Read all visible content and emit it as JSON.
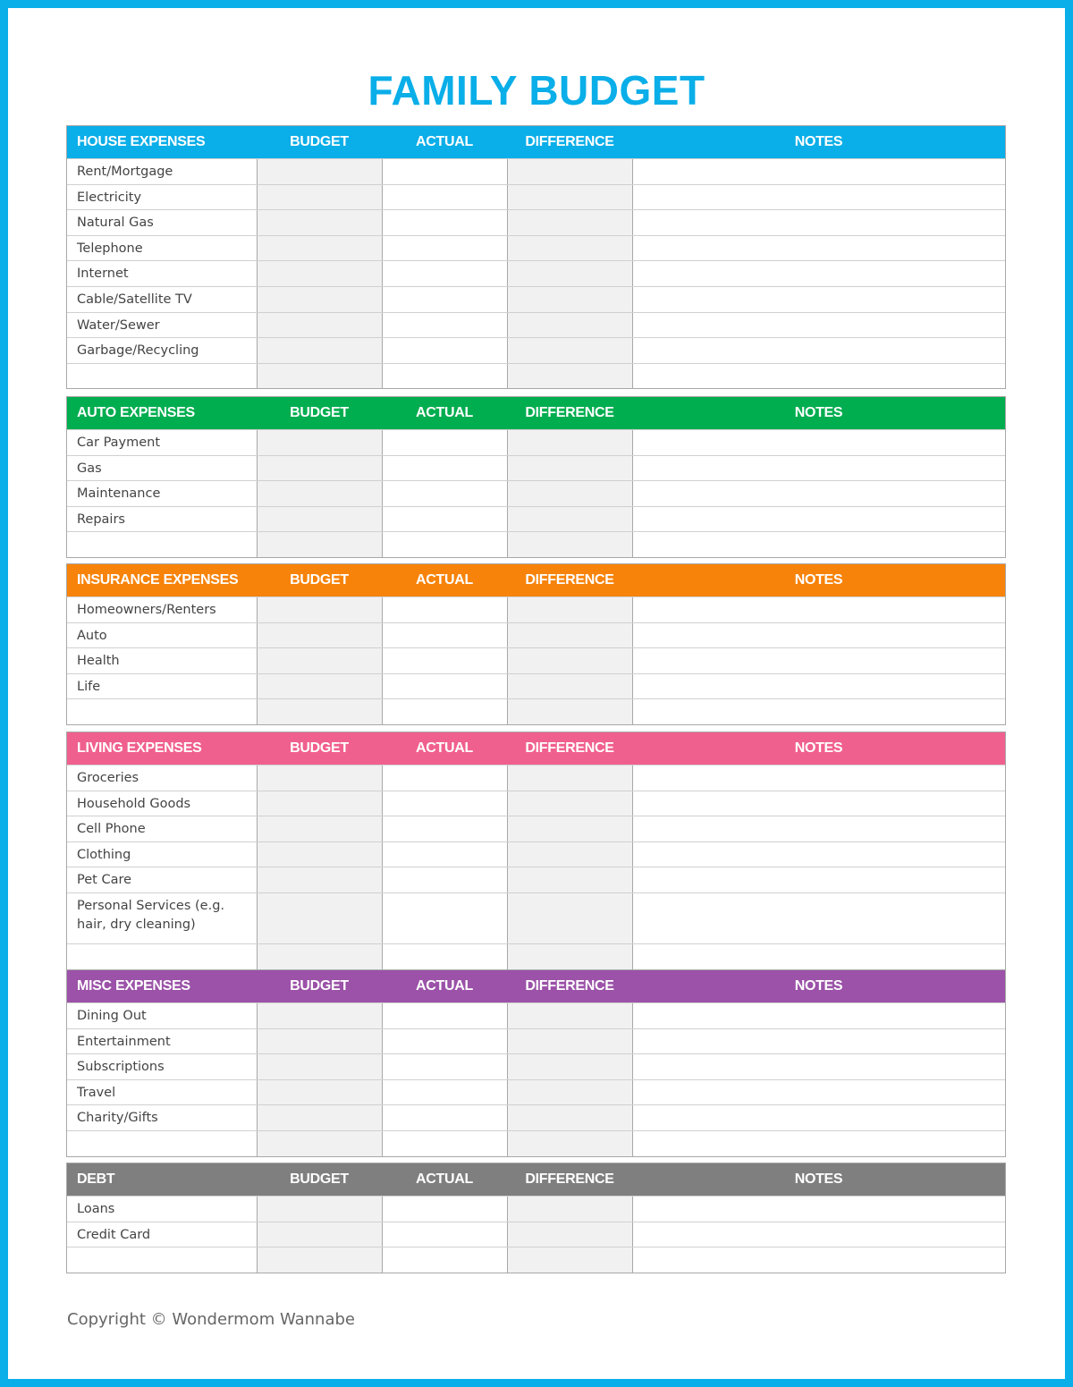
{
  "title": "FAMILY BUDGET",
  "columns": [
    "BUDGET",
    "ACTUAL",
    "DIFFERENCE",
    "NOTES"
  ],
  "sections": [
    {
      "name": "HOUSE EXPENSES",
      "color": "#0aaee8",
      "items": [
        "Rent/Mortgage",
        "Electricity",
        "Natural Gas",
        "Telephone",
        "Internet",
        "Cable/Satellite TV",
        "Water/Sewer",
        "Garbage/Recycling",
        ""
      ]
    },
    {
      "name": "AUTO EXPENSES",
      "color": "#00ad4f",
      "items": [
        "Car Payment",
        "Gas",
        "Maintenance",
        "Repairs",
        ""
      ]
    },
    {
      "name": "INSURANCE EXPENSES",
      "color": "#f7830a",
      "items": [
        "Homeowners/Renters",
        "Auto",
        "Health",
        "Life",
        ""
      ]
    },
    {
      "name": "LIVING EXPENSES",
      "color": "#f0608e",
      "items": [
        "Groceries",
        "Household Goods",
        "Cell Phone",
        "Clothing",
        "Pet Care",
        "Personal Services (e.g. hair, dry cleaning)",
        ""
      ]
    },
    {
      "name": "MISC EXPENSES",
      "color": "#9b52a8",
      "items": [
        "Dining Out",
        "Entertainment",
        "Subscriptions",
        "Travel",
        "Charity/Gifts",
        ""
      ]
    },
    {
      "name": "DEBT",
      "color": "#7f7f7f",
      "items": [
        "Loans",
        "Credit Card",
        ""
      ]
    }
  ],
  "copyright": "Copyright © Wondermom Wannabe"
}
